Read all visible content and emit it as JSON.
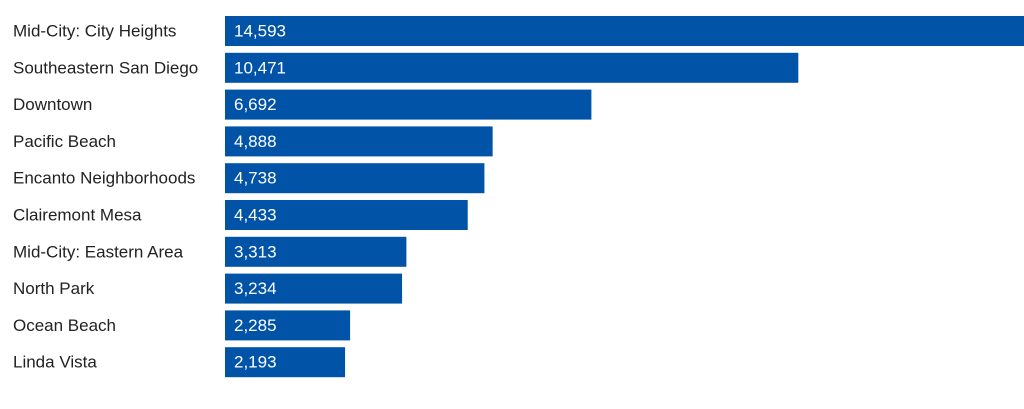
{
  "chart_data": {
    "type": "bar",
    "orientation": "horizontal",
    "categories": [
      "Mid-City: City Heights",
      "Southeastern San Diego",
      "Downtown",
      "Pacific Beach",
      "Encanto Neighborhoods",
      "Clairemont Mesa",
      "Mid-City: Eastern Area",
      "North Park",
      "Ocean Beach",
      "Linda Vista"
    ],
    "values": [
      14593,
      10471,
      6692,
      4888,
      4738,
      4433,
      3313,
      3234,
      2285,
      2193
    ],
    "value_labels": [
      "14,593",
      "10,471",
      "6,692",
      "4,888",
      "4,738",
      "4,433",
      "3,313",
      "3,234",
      "2,285",
      "2,193"
    ],
    "title": "",
    "xlabel": "",
    "ylabel": "",
    "xlim": [
      0,
      14593
    ],
    "grid": false,
    "legend": "none",
    "bar_color": "#0053a6",
    "label_color": "#222222",
    "value_label_color": "#ffffff"
  }
}
